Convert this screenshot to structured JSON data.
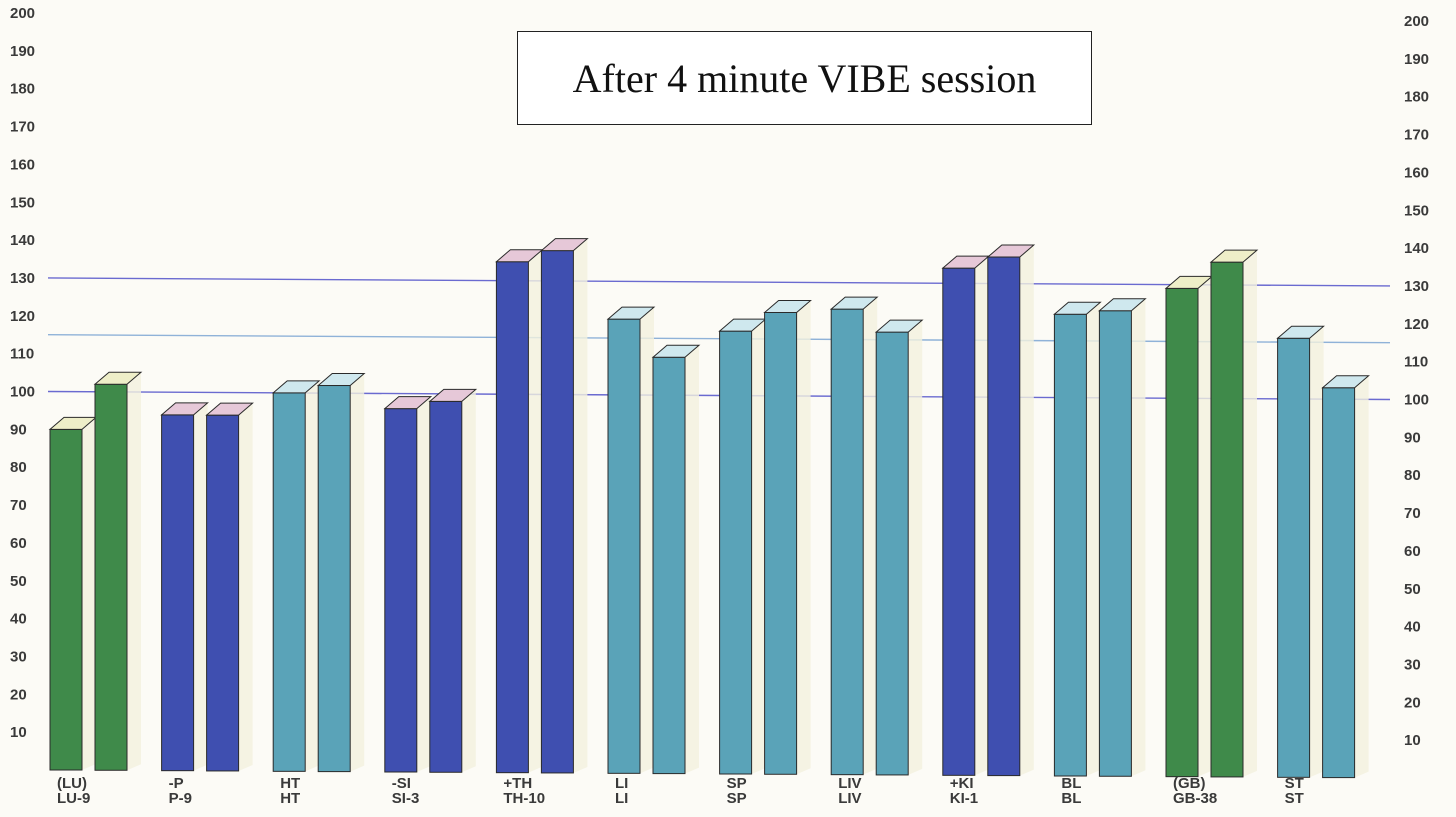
{
  "chart_data": {
    "type": "bar",
    "title": "After 4 minute VIBE session",
    "ylim": [
      0,
      200
    ],
    "yticks": [
      10,
      20,
      30,
      40,
      50,
      60,
      70,
      80,
      90,
      100,
      110,
      120,
      130,
      140,
      150,
      160,
      170,
      180,
      190,
      200
    ],
    "reference_lines": [
      {
        "value": 130,
        "color": "#6a6ad0"
      },
      {
        "value": 115,
        "color": "#8fb2d8"
      },
      {
        "value": 100,
        "color": "#6a6ad0"
      }
    ],
    "groups": [
      {
        "labels": [
          "(LU)",
          "LU-9"
        ],
        "values": [
          90,
          102
        ],
        "color": "#3f8a4a",
        "top_color": "#eeeec8"
      },
      {
        "labels": [
          "-P",
          "P-9"
        ],
        "values": [
          94,
          94
        ],
        "color": "#3f4fb0",
        "top_color": "#e6c8d8"
      },
      {
        "labels": [
          "HT",
          "HT"
        ],
        "values": [
          100,
          102
        ],
        "color": "#5aa3b8",
        "top_color": "#cfe8ee"
      },
      {
        "labels": [
          "-SI",
          "SI-3"
        ],
        "values": [
          96,
          98
        ],
        "color": "#3f4fb0",
        "top_color": "#e6c8d8"
      },
      {
        "labels": [
          "+TH",
          "TH-10"
        ],
        "values": [
          135,
          138
        ],
        "color": "#3f4fb0",
        "top_color": "#e6c8d8"
      },
      {
        "labels": [
          "LI",
          "LI"
        ],
        "values": [
          120,
          110
        ],
        "color": "#5aa3b8",
        "top_color": "#cfe8ee"
      },
      {
        "labels": [
          "SP",
          "SP"
        ],
        "values": [
          117,
          122
        ],
        "color": "#5aa3b8",
        "top_color": "#cfe8ee"
      },
      {
        "labels": [
          "LIV",
          "LIV"
        ],
        "values": [
          123,
          117
        ],
        "color": "#5aa3b8",
        "top_color": "#cfe8ee"
      },
      {
        "labels": [
          "+KI",
          "KI-1"
        ],
        "values": [
          134,
          137
        ],
        "color": "#3f4fb0",
        "top_color": "#e6c8d8"
      },
      {
        "labels": [
          "BL",
          "BL"
        ],
        "values": [
          122,
          123
        ],
        "color": "#5aa3b8",
        "top_color": "#cfe8ee"
      },
      {
        "labels": [
          "(GB)",
          "GB-38"
        ],
        "values": [
          129,
          136
        ],
        "color": "#3f8a4a",
        "top_color": "#eeeec8"
      },
      {
        "labels": [
          "ST",
          "ST"
        ],
        "values": [
          116,
          103
        ],
        "color": "#5aa3b8",
        "top_color": "#cfe8ee"
      }
    ]
  }
}
